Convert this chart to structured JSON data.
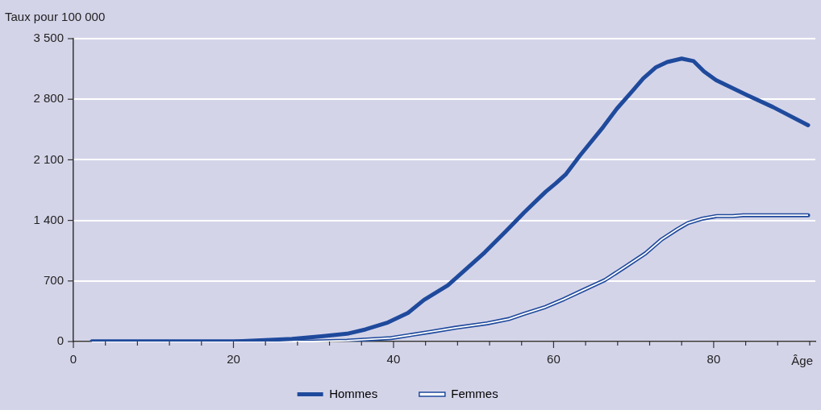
{
  "chart_data": {
    "type": "line",
    "xlabel": "Âge",
    "ylabel": "Taux pour 100 000",
    "xlim": [
      0,
      92.7
    ],
    "ylim": [
      0,
      3500
    ],
    "xticks": [
      0,
      {
        "value": 4,
        "label": null
      },
      {
        "value": 8,
        "label": null
      },
      {
        "value": 12,
        "label": null
      },
      {
        "value": 16,
        "label": null
      },
      20,
      {
        "value": 24,
        "label": null
      },
      {
        "value": 28,
        "label": null
      },
      {
        "value": 32,
        "label": null
      },
      {
        "value": 36,
        "label": null
      },
      40,
      {
        "value": 44,
        "label": null
      },
      {
        "value": 48,
        "label": null
      },
      {
        "value": 52,
        "label": null
      },
      {
        "value": 56,
        "label": null
      },
      60,
      {
        "value": 64,
        "label": null
      },
      {
        "value": 68,
        "label": null
      },
      {
        "value": 72,
        "label": null
      },
      {
        "value": 76,
        "label": null
      },
      80,
      {
        "value": 84,
        "label": null
      },
      {
        "value": 88,
        "label": null
      },
      {
        "value": 92,
        "label": null
      }
    ],
    "yticks": [
      0,
      700,
      {
        "value": 1400,
        "label": "1 400"
      },
      {
        "value": 2100,
        "label": "2 100"
      },
      {
        "value": 2800,
        "label": "2 800"
      },
      {
        "value": 3500,
        "label": "3 500"
      }
    ],
    "grid": "y",
    "legend": "bottom",
    "marker": "none",
    "series": [
      {
        "name": "Hommes",
        "color": "#1f4a9c",
        "x": [
          2.3,
          10,
          20,
          27.3,
          31,
          34.2,
          36.5,
          39.3,
          41.8,
          43.8,
          46.8,
          51.4,
          54.0,
          56.3,
          59.0,
          60.3,
          61.5,
          63.3,
          66.2,
          67.9,
          69.9,
          71.2,
          72.8,
          74.2,
          76.0,
          77.5,
          78.8,
          80.3,
          84.1,
          87.4,
          91.8
        ],
        "values": [
          0,
          0,
          0,
          30,
          60,
          90,
          140,
          220,
          330,
          480,
          650,
          1030,
          1270,
          1490,
          1730,
          1830,
          1930,
          2150,
          2480,
          2690,
          2900,
          3040,
          3170,
          3230,
          3270,
          3240,
          3120,
          3020,
          2850,
          2710,
          2500
        ]
      },
      {
        "name": "Femmes",
        "color": "#1f4a9c",
        "x": [
          2.3,
          20,
          30,
          34.2,
          39.7,
          44.5,
          47.8,
          51.7,
          54.4,
          56.3,
          59.0,
          61.3,
          63.6,
          66.4,
          68.9,
          71.5,
          73.5,
          75.5,
          76.8,
          78.6,
          80.4,
          82.4,
          83.7,
          91.8
        ],
        "values": [
          0,
          0,
          0,
          10,
          40,
          110,
          160,
          210,
          260,
          320,
          400,
          490,
          590,
          710,
          860,
          1020,
          1180,
          1300,
          1370,
          1420,
          1450,
          1450,
          1460,
          1460
        ]
      }
    ]
  }
}
